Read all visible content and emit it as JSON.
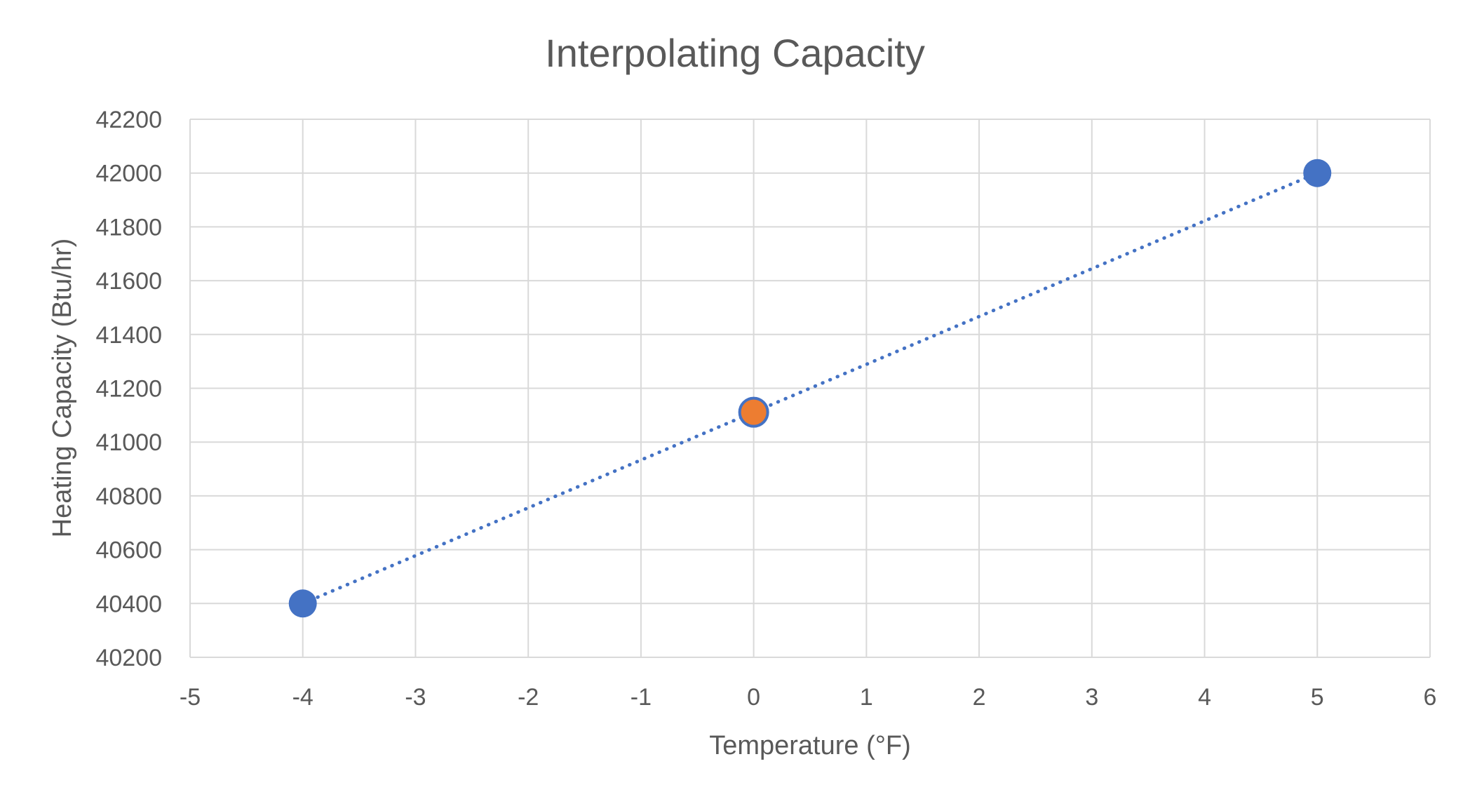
{
  "chart_data": {
    "type": "scatter",
    "title": "Interpolating Capacity",
    "xlabel": "Temperature (°F)",
    "ylabel": "Heating Capacity (Btu/hr)",
    "xlim": [
      -5,
      6
    ],
    "ylim": [
      40200,
      42200
    ],
    "x_ticks": [
      -5,
      -4,
      -3,
      -2,
      -1,
      0,
      1,
      2,
      3,
      4,
      5,
      6
    ],
    "y_ticks": [
      40200,
      40400,
      40600,
      40800,
      41000,
      41200,
      41400,
      41600,
      41800,
      42000,
      42200
    ],
    "grid": true,
    "legend": "none",
    "series": [
      {
        "color": "#4472c4",
        "marker": "circle",
        "trendline": "linear-dotted",
        "points": [
          {
            "x": -4,
            "y": 40400
          },
          {
            "x": 5,
            "y": 42000
          }
        ]
      },
      {
        "color": "#ed7d31",
        "edge_color": "#4472c4",
        "marker": "circle",
        "points": [
          {
            "x": 0,
            "y": 41111
          }
        ]
      }
    ]
  }
}
